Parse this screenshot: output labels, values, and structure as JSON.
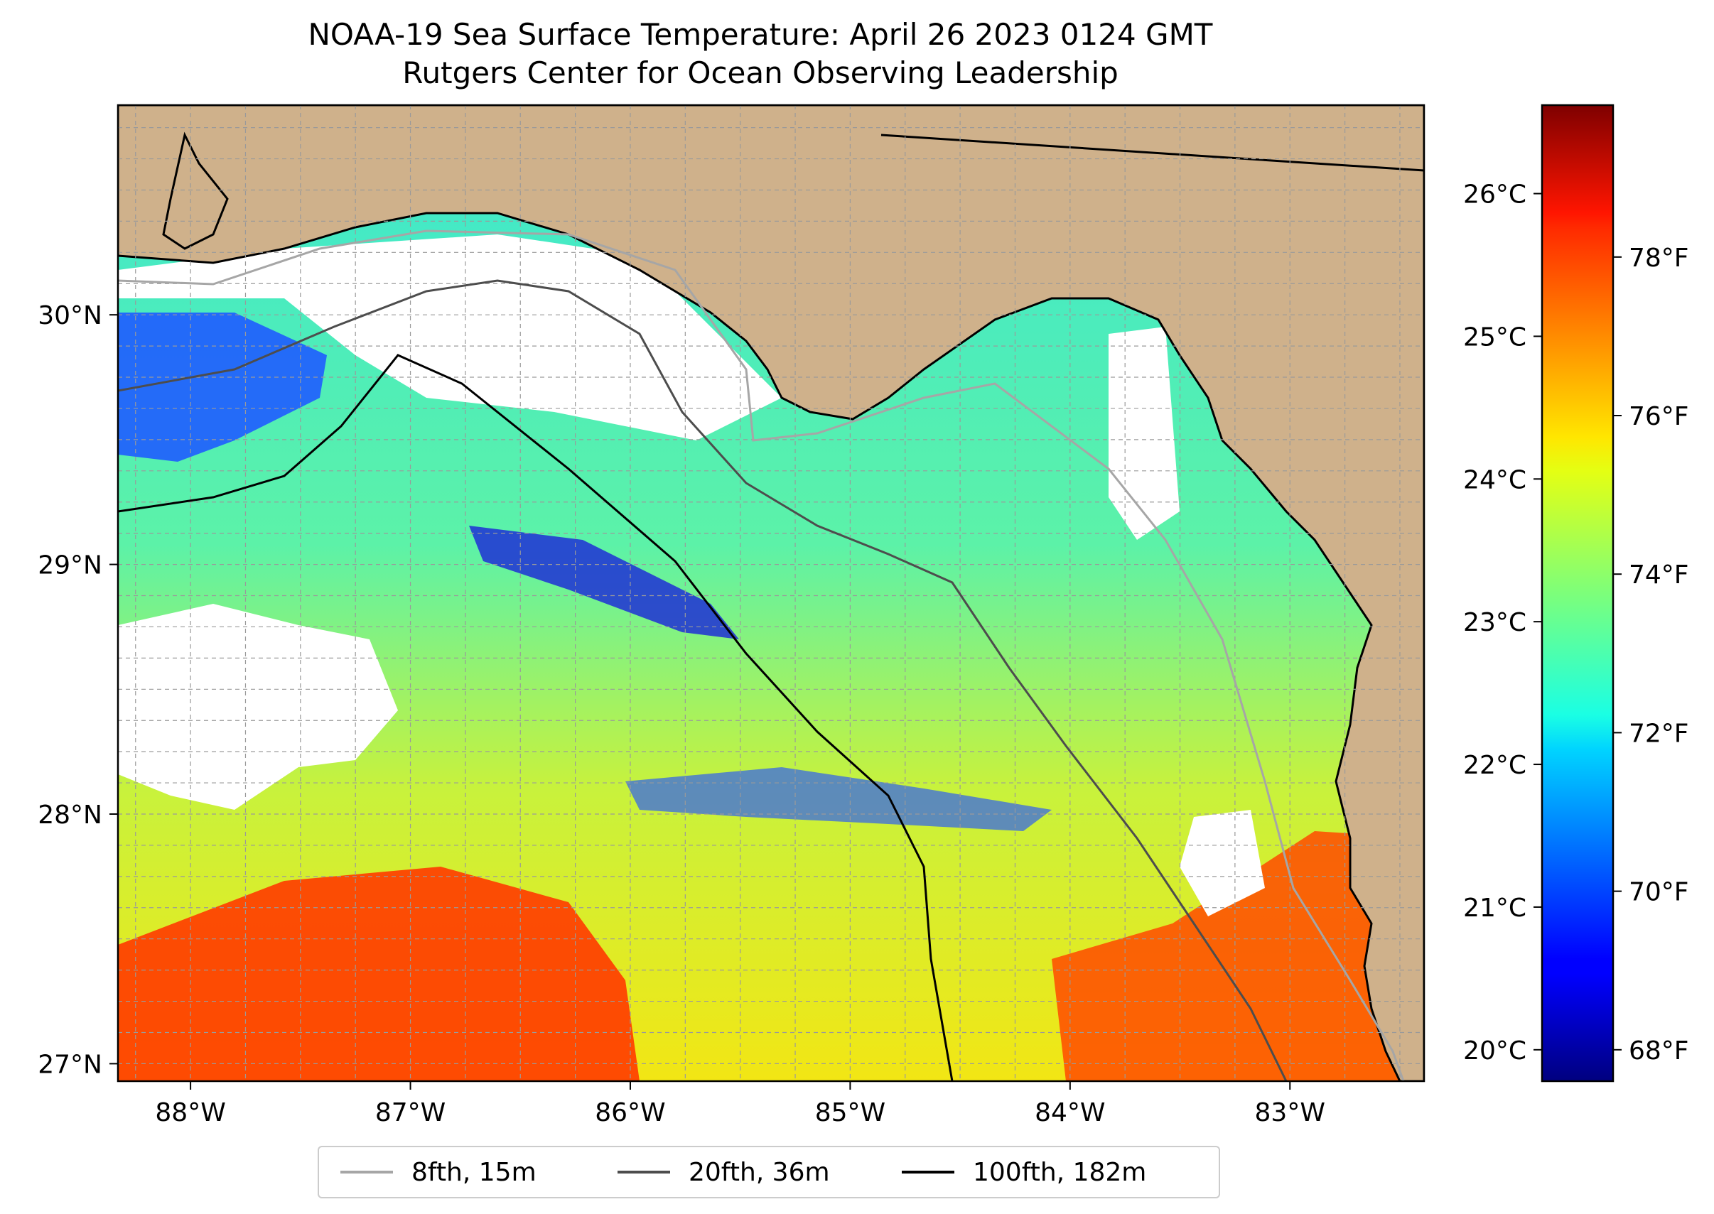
{
  "title": {
    "line1": "NOAA-19 Sea Surface Temperature: April 26 2023 0124 GMT",
    "line2": "Rutgers Center for Ocean Observing Leadership"
  },
  "map": {
    "lon_range": [
      -88.33,
      -82.39
    ],
    "lat_range": [
      26.93,
      30.84
    ],
    "land_color": "#cfb18b",
    "cloud_color": "#ffffff",
    "colormap": "jet",
    "x_ticks": [
      {
        "lon": -88,
        "label": "88°W"
      },
      {
        "lon": -87,
        "label": "87°W"
      },
      {
        "lon": -86,
        "label": "86°W"
      },
      {
        "lon": -85,
        "label": "85°W"
      },
      {
        "lon": -84,
        "label": "84°W"
      },
      {
        "lon": -83,
        "label": "83°W"
      }
    ],
    "y_ticks": [
      {
        "lat": 30,
        "label": "30°N"
      },
      {
        "lat": 29,
        "label": "29°N"
      },
      {
        "lat": 28,
        "label": "28°N"
      },
      {
        "lat": 27,
        "label": "27°N"
      }
    ],
    "gridlines": true
  },
  "colorbar": {
    "celsius_range": [
      19.78,
      26.62
    ],
    "celsius_ticks": [
      {
        "value": 20,
        "label": "20°C"
      },
      {
        "value": 21,
        "label": "21°C"
      },
      {
        "value": 22,
        "label": "22°C"
      },
      {
        "value": 23,
        "label": "23°C"
      },
      {
        "value": 24,
        "label": "24°C"
      },
      {
        "value": 25,
        "label": "25°C"
      },
      {
        "value": 26,
        "label": "26°C"
      }
    ],
    "fahrenheit_ticks": [
      {
        "value": 68,
        "label": "68°F"
      },
      {
        "value": 70,
        "label": "70°F"
      },
      {
        "value": 72,
        "label": "72°F"
      },
      {
        "value": 74,
        "label": "74°F"
      },
      {
        "value": 76,
        "label": "76°F"
      },
      {
        "value": 78,
        "label": "78°F"
      }
    ]
  },
  "legend": {
    "items": [
      {
        "label": "8fth, 15m",
        "color": "#a6a6a6"
      },
      {
        "label": "20fth, 36m",
        "color": "#4d4d4d"
      },
      {
        "label": "100fth, 182m",
        "color": "#000000"
      }
    ]
  }
}
